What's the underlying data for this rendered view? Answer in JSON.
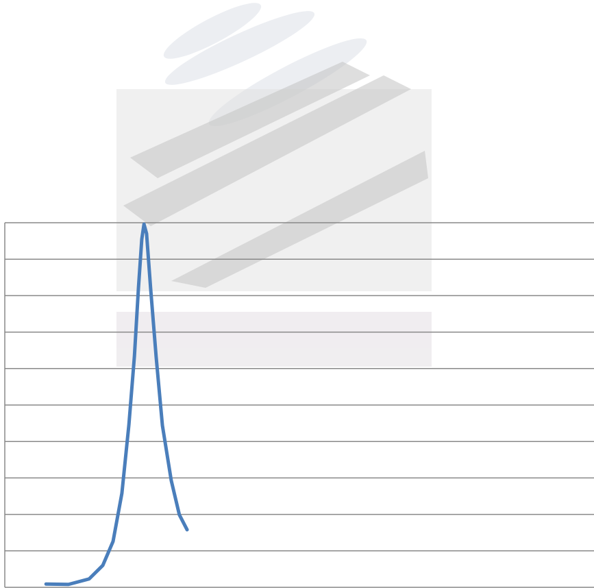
{
  "chart_data": {
    "type": "line",
    "x": [
      1.12,
      1.73,
      2.29,
      2.66,
      2.94,
      3.18,
      3.37,
      3.52,
      3.63,
      3.72,
      3.78,
      3.85,
      3.96,
      4.11,
      4.28,
      4.52,
      4.74,
      4.95
    ],
    "series": [
      {
        "color": "#4a7ebb",
        "values": [
          0.09,
          0.08,
          0.23,
          0.6,
          1.26,
          2.58,
          4.46,
          6.34,
          8.22,
          9.55,
          9.96,
          9.7,
          8.2,
          6.32,
          4.44,
          2.93,
          1.99,
          1.58
        ]
      }
    ],
    "xlim": [
      0,
      16
    ],
    "ylim": [
      0,
      10
    ],
    "yticks": [
      0,
      1,
      2,
      3,
      4,
      5,
      6,
      7,
      8,
      9,
      10
    ],
    "grid": true
  }
}
